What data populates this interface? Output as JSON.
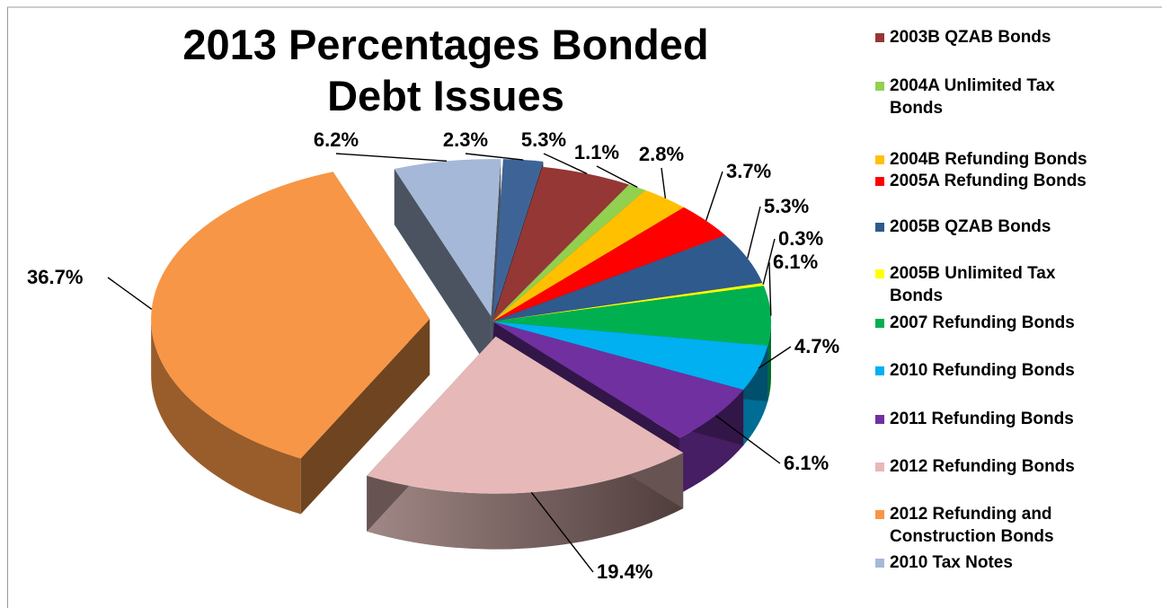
{
  "chart_data": {
    "type": "pie",
    "title_lines": [
      "2013 Percentages Bonded",
      "Debt Issues"
    ],
    "slices": [
      {
        "name": "2005B QZAB Bonds (first)",
        "value": 2.3,
        "label": "2.3%",
        "color": "#3E6497"
      },
      {
        "name": "2003B QZAB Bonds",
        "value": 5.3,
        "label": "5.3%",
        "color": "#953735"
      },
      {
        "name": "2004A Unlimited Tax Bonds",
        "value": 1.1,
        "label": "1.1%",
        "color": "#92D050"
      },
      {
        "name": "2004B Refunding Bonds",
        "value": 2.8,
        "label": "2.8%",
        "color": "#FFC000"
      },
      {
        "name": "2005A Refunding Bonds",
        "value": 3.7,
        "label": "3.7%",
        "color": "#FF0000"
      },
      {
        "name": "2005B QZAB Bonds",
        "value": 5.3,
        "label": "5.3%",
        "color": "#2E5A8E"
      },
      {
        "name": "2005B Unlimited Tax Bonds",
        "value": 0.3,
        "label": "0.3%",
        "color": "#FFFF00"
      },
      {
        "name": "2007 Refunding Bonds",
        "value": 6.1,
        "label": "6.1%",
        "color": "#00B050"
      },
      {
        "name": "2010 Refunding Bonds",
        "value": 4.7,
        "label": "4.7%",
        "color": "#00B0F0"
      },
      {
        "name": "2011 Refunding Bonds",
        "value": 6.1,
        "label": "6.1%",
        "color": "#7030A0"
      },
      {
        "name": "2012 Refunding Bonds",
        "value": 19.4,
        "label": "19.4%",
        "color": "#E6B9B8"
      },
      {
        "name": "2012 Refunding and Construction Bonds",
        "value": 36.7,
        "label": "36.7%",
        "color": "#F79646"
      },
      {
        "name": "2010 Tax Notes",
        "value": 6.2,
        "label": "6.2%",
        "color": "#A6B8D8"
      }
    ],
    "legend": [
      {
        "lines": [
          "2003B QZAB Bonds"
        ],
        "color": "#953735"
      },
      {
        "lines": [
          "2004A Unlimited Tax",
          "Bonds"
        ],
        "color": "#92D050"
      },
      {
        "lines": [
          "2004B Refunding Bonds"
        ],
        "color": "#FFC000"
      },
      {
        "lines": [
          "2005A Refunding Bonds"
        ],
        "color": "#FF0000"
      },
      {
        "lines": [
          "2005B QZAB Bonds"
        ],
        "color": "#2E5A8E"
      },
      {
        "lines": [
          "2005B Unlimited Tax",
          "Bonds"
        ],
        "color": "#FFFF00"
      },
      {
        "lines": [
          "2007 Refunding Bonds"
        ],
        "color": "#00B050"
      },
      {
        "lines": [
          "2010 Refunding Bonds"
        ],
        "color": "#00B0F0"
      },
      {
        "lines": [
          "2011 Refunding Bonds"
        ],
        "color": "#7030A0"
      },
      {
        "lines": [
          "2012 Refunding Bonds"
        ],
        "color": "#E6B9B8"
      },
      {
        "lines": [
          "2012 Refunding and",
          "Construction Bonds"
        ],
        "color": "#F79646"
      },
      {
        "lines": [
          "2010 Tax Notes"
        ],
        "color": "#A6B8D8"
      }
    ],
    "legend_position": "right",
    "style": "3d-exploded"
  }
}
